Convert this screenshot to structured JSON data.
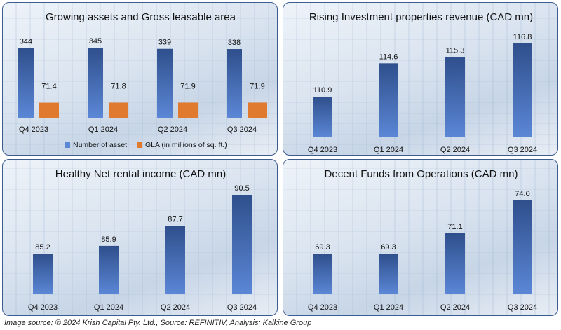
{
  "footer": {
    "source_text": "Image source: © 2024 Krish Capital Pty. Ltd., Source: REFINITIV, Analysis: Kalkine Group"
  },
  "colors": {
    "bar_blue_top": "#2f4f8c",
    "bar_blue_bottom": "#5b87d6",
    "bar_orange": "#e07a2e",
    "panel_border": "#3b5c8f"
  },
  "chart_data": [
    {
      "type": "bar",
      "title": "Growing assets and Gross leasable area",
      "categories": [
        "Q4 2023",
        "Q1 2024",
        "Q2 2024",
        "Q3 2024"
      ],
      "series": [
        {
          "name": "Number of asset",
          "values": [
            344,
            345,
            339,
            338
          ],
          "labels": [
            "344",
            "345",
            "339",
            "338"
          ]
        },
        {
          "name": "GLA (in millions of sq. ft.)",
          "values": [
            71.4,
            71.8,
            71.9,
            71.9
          ],
          "labels": [
            "71.4",
            "71.8",
            "71.9",
            "71.9"
          ]
        }
      ],
      "legend": "bottom",
      "grid": false
    },
    {
      "type": "bar",
      "title": "Rising Investment properties revenue (CAD mn)",
      "categories": [
        "Q4 2023",
        "Q1 2024",
        "Q2 2024",
        "Q3 2024"
      ],
      "values": [
        110.9,
        114.6,
        115.3,
        116.8
      ],
      "labels": [
        "110.9",
        "114.6",
        "115.3",
        "116.8"
      ],
      "grid": false
    },
    {
      "type": "bar",
      "title": "Healthy Net rental income (CAD mn)",
      "categories": [
        "Q4 2023",
        "Q1 2024",
        "Q2 2024",
        "Q3 2024"
      ],
      "values": [
        85.2,
        85.9,
        87.7,
        90.5
      ],
      "labels": [
        "85.2",
        "85.9",
        "87.7",
        "90.5"
      ],
      "grid": false
    },
    {
      "type": "bar",
      "title": "Decent Funds from Operations (CAD mn)",
      "categories": [
        "Q4 2023",
        "Q1 2024",
        "Q2 2024",
        "Q3 2024"
      ],
      "values": [
        69.3,
        69.3,
        71.1,
        74.0
      ],
      "labels": [
        "69.3",
        "69.3",
        "71.1",
        "74.0"
      ],
      "grid": false
    }
  ]
}
